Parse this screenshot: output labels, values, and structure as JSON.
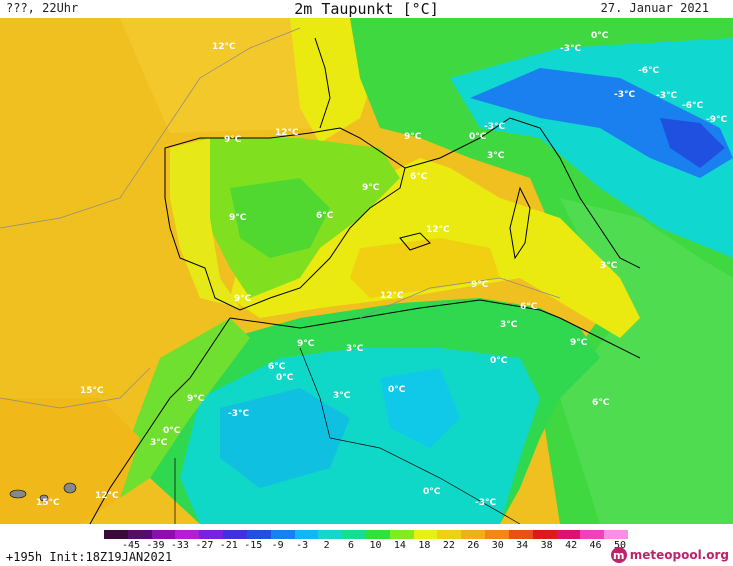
{
  "header": {
    "left": "???, 22Uhr",
    "title": "2m Taupunkt [°C]",
    "date": "27. Januar 2021"
  },
  "footer": {
    "run": "+195h Init:18Z19JAN2021",
    "logo_text": "meteopool.org",
    "logo_icon": "m"
  },
  "colorbar": {
    "ticks": [
      "-45",
      "-39",
      "-33",
      "-27",
      "-21",
      "-15",
      "-9",
      "-3",
      "2",
      "6",
      "10",
      "14",
      "18",
      "22",
      "26",
      "30",
      "34",
      "38",
      "42",
      "46",
      "50"
    ],
    "colors": [
      "#3a0a3a",
      "#5a0a6a",
      "#8a10a8",
      "#b020d0",
      "#7a20e0",
      "#4030e0",
      "#2050e0",
      "#1a80f0",
      "#10b8f0",
      "#10d8d0",
      "#10e090",
      "#30e040",
      "#80ec20",
      "#e8f010",
      "#f0d010",
      "#f0b018",
      "#f08818",
      "#e85018",
      "#e01818",
      "#e01070",
      "#f040c0",
      "#f890e8"
    ]
  },
  "map_labels": [
    {
      "text": "12°C"
    },
    {
      "text": "12°C"
    },
    {
      "text": "9°C"
    },
    {
      "text": "9°C"
    },
    {
      "text": "6°C"
    },
    {
      "text": "9°C"
    },
    {
      "text": "9°C"
    },
    {
      "text": "6°C"
    },
    {
      "text": "12°C"
    },
    {
      "text": "9°C"
    },
    {
      "text": "12°C"
    },
    {
      "text": "9°C"
    },
    {
      "text": "6°C"
    },
    {
      "text": "3°C"
    },
    {
      "text": "9°C"
    },
    {
      "text": "3°C"
    },
    {
      "text": "6°C"
    },
    {
      "text": "0°C"
    },
    {
      "text": "0°C"
    },
    {
      "text": "3°C"
    },
    {
      "text": "0°C"
    },
    {
      "text": "15°C"
    },
    {
      "text": "9°C"
    },
    {
      "text": "-3°C"
    },
    {
      "text": "0°C"
    },
    {
      "text": "3°C"
    },
    {
      "text": "15°C"
    },
    {
      "text": "12°C"
    },
    {
      "text": "0°C"
    },
    {
      "text": "-3°C"
    },
    {
      "text": "6°C"
    },
    {
      "text": "9°C"
    },
    {
      "text": "3°C"
    },
    {
      "text": "-3°C"
    },
    {
      "text": "0°C"
    },
    {
      "text": "-6°C"
    },
    {
      "text": "-3°C"
    },
    {
      "text": "-3°C"
    },
    {
      "text": "-6°C"
    },
    {
      "text": "-9°C"
    },
    {
      "text": "3°C"
    },
    {
      "text": "0°C"
    },
    {
      "text": "-3°C"
    }
  ]
}
